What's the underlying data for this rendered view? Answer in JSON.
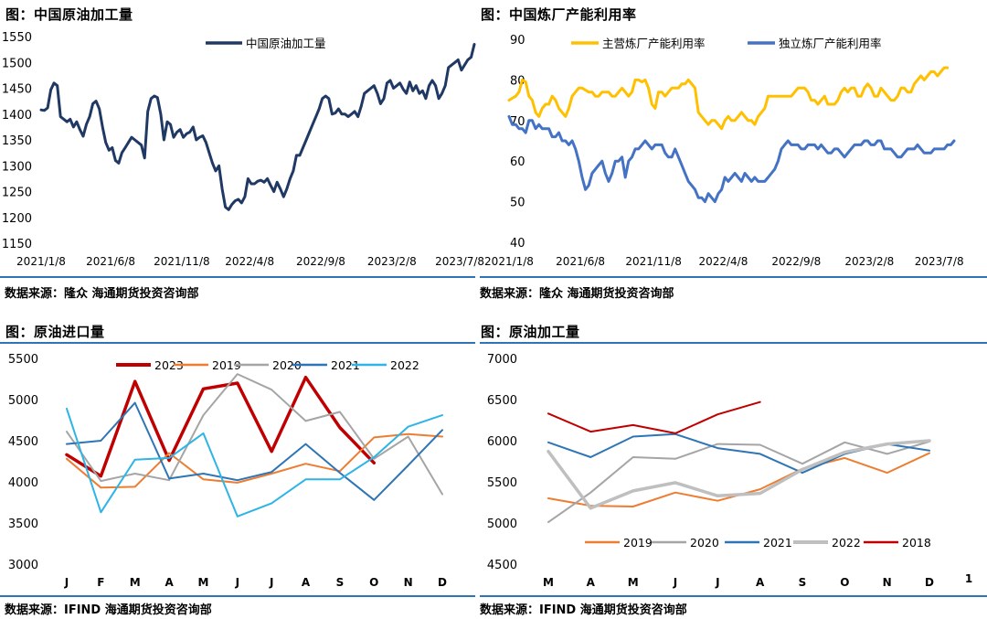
{
  "panels": {
    "p1": {
      "title": "图：中国原油加工量",
      "source": "数据来源：隆众   海通期货投资咨询部"
    },
    "p2": {
      "title": "图：中国炼厂产能利用率",
      "source": "数据来源：隆众   海通期货投资咨询部"
    },
    "p3": {
      "title": "图：原油进口量",
      "source": "数据来源：IFIND   海通期货投资咨询部"
    },
    "p4": {
      "title": "图：原油加工量",
      "source": "数据来源：IFIND   海通期货投资咨询部"
    }
  },
  "colors": {
    "rule": "#2E75B6",
    "navy": "#1F3864",
    "gold": "#FFC000",
    "blue2": "#4472C4",
    "c2023": "#C00000",
    "c2019": "#ED7D31",
    "c2020": "#A5A5A5",
    "c2021": "#2E75B6",
    "c2022": "#2EB4E6",
    "c2022b": "#BFBFBF",
    "c2018": "#C00000"
  },
  "chart_data": [
    {
      "id": "p1",
      "type": "line",
      "title": "图：中国原油加工量",
      "ylim": [
        1150,
        1550
      ],
      "yticks": [
        1150,
        1200,
        1250,
        1300,
        1350,
        1400,
        1450,
        1500,
        1550
      ],
      "xlim": [
        0,
        134
      ],
      "xticks": [
        {
          "label": "2021/1/8",
          "x": 0
        },
        {
          "label": "2021/6/8",
          "x": 21.5
        },
        {
          "label": "2021/11/8",
          "x": 43.5
        },
        {
          "label": "2022/4/8",
          "x": 64.5
        },
        {
          "label": "2022/9/8",
          "x": 86.5
        },
        {
          "label": "2023/2/8",
          "x": 108.5
        },
        {
          "label": "2023/7/8",
          "x": 129.5
        }
      ],
      "legend": "top-center",
      "series": [
        {
          "name": "中国原油加工量",
          "color": "#1F3864",
          "values": [
            1408,
            1407,
            1412,
            1447,
            1460,
            1455,
            1395,
            1390,
            1385,
            1390,
            1375,
            1385,
            1370,
            1357,
            1380,
            1395,
            1420,
            1425,
            1410,
            1375,
            1345,
            1330,
            1335,
            1310,
            1305,
            1325,
            1335,
            1345,
            1355,
            1350,
            1345,
            1340,
            1315,
            1405,
            1430,
            1435,
            1432,
            1400,
            1350,
            1385,
            1380,
            1355,
            1365,
            1370,
            1355,
            1362,
            1365,
            1375,
            1350,
            1355,
            1358,
            1345,
            1325,
            1305,
            1290,
            1300,
            1255,
            1220,
            1215,
            1225,
            1232,
            1235,
            1228,
            1240,
            1275,
            1265,
            1265,
            1270,
            1272,
            1268,
            1275,
            1262,
            1250,
            1268,
            1255,
            1240,
            1255,
            1275,
            1290,
            1320,
            1320,
            1335,
            1350,
            1365,
            1380,
            1395,
            1410,
            1430,
            1435,
            1430,
            1400,
            1402,
            1410,
            1400,
            1400,
            1395,
            1400,
            1405,
            1395,
            1415,
            1440,
            1445,
            1450,
            1455,
            1440,
            1420,
            1430,
            1460,
            1465,
            1450,
            1455,
            1460,
            1448,
            1440,
            1462,
            1445,
            1455,
            1440,
            1445,
            1430,
            1455,
            1465,
            1455,
            1430,
            1440,
            1455,
            1490,
            1495,
            1500,
            1505,
            1485,
            1495,
            1505,
            1510,
            1535
          ]
        }
      ]
    },
    {
      "id": "p2",
      "type": "line",
      "title": "图：中国炼厂产能利用率",
      "ylim": [
        40,
        90
      ],
      "yticks": [
        40,
        50,
        60,
        70,
        80,
        90
      ],
      "xlim": [
        0,
        134
      ],
      "xticks": [
        {
          "label": "2021/1/8",
          "x": 0
        },
        {
          "label": "2021/6/8",
          "x": 21.5
        },
        {
          "label": "2021/11/8",
          "x": 43.5
        },
        {
          "label": "2022/4/8",
          "x": 64.5
        },
        {
          "label": "2022/9/8",
          "x": 86.5
        },
        {
          "label": "2023/2/8",
          "x": 108.5
        },
        {
          "label": "2023/7/8",
          "x": 129.5
        }
      ],
      "legend": "top",
      "series": [
        {
          "name": "主营炼厂产能利用率",
          "color": "#FFC000",
          "values": [
            75,
            75.5,
            76,
            77,
            80,
            79.5,
            76,
            75,
            72,
            71,
            73,
            74,
            74,
            76,
            75,
            73,
            72,
            71,
            73,
            76,
            77,
            78,
            78,
            77.5,
            77,
            77,
            76,
            76,
            77,
            77,
            77,
            76,
            76,
            77,
            78,
            77,
            76,
            77,
            80,
            80,
            79.5,
            80,
            78,
            74,
            73,
            77,
            77,
            76,
            77,
            78,
            78,
            78,
            79,
            79,
            80,
            79,
            78,
            72,
            71,
            70,
            69,
            70,
            70,
            69,
            68,
            70,
            71,
            70,
            70,
            71,
            72,
            71,
            70,
            70,
            69,
            71,
            72,
            73,
            76,
            76,
            76,
            76,
            76,
            76,
            76,
            76,
            77,
            78,
            78,
            78,
            77,
            75,
            75,
            74,
            75,
            76,
            74,
            74,
            74,
            75,
            77,
            78,
            77,
            78,
            78,
            76,
            76,
            78,
            79,
            78,
            76,
            76,
            78,
            77,
            76,
            75,
            75,
            76,
            78,
            78,
            77,
            77,
            79,
            80,
            81,
            80,
            81,
            82,
            82,
            81,
            82,
            83,
            83
          ]
        },
        {
          "name": "独立炼厂产能利用率",
          "color": "#4472C4",
          "values": [
            71,
            69,
            69,
            68,
            68,
            67,
            70,
            70,
            68,
            69,
            68,
            68,
            68,
            66,
            66,
            67,
            65,
            65,
            64,
            65,
            63,
            60,
            56,
            53,
            54,
            57,
            58,
            59,
            60,
            57,
            55,
            57,
            60,
            60,
            61,
            56,
            60,
            61,
            63,
            63,
            64,
            65,
            64,
            63,
            64,
            64,
            64,
            62,
            61,
            61,
            63,
            61,
            59,
            57,
            55,
            54,
            53,
            51,
            51,
            50,
            52,
            51,
            50,
            52,
            53,
            56,
            55,
            56,
            57,
            56,
            55,
            57,
            56,
            55,
            56,
            55,
            55,
            55,
            56,
            57,
            58,
            60,
            63,
            64,
            65,
            64,
            64,
            64,
            63,
            63,
            64,
            64,
            64,
            63,
            64,
            63,
            62,
            62,
            63,
            63,
            62,
            61,
            62,
            63,
            64,
            64,
            64,
            65,
            65,
            64,
            64,
            65,
            65,
            63,
            63,
            63,
            62,
            61,
            61,
            62,
            63,
            63,
            63,
            64,
            63,
            62,
            62,
            62,
            63,
            63,
            63,
            63,
            64,
            64,
            65
          ]
        }
      ]
    },
    {
      "id": "p3",
      "type": "line",
      "title": "图：原油进口量",
      "categories": [
        "J",
        "F",
        "M",
        "A",
        "M",
        "J",
        "J",
        "A",
        "S",
        "O",
        "N",
        "D"
      ],
      "ylim": [
        3000,
        5500
      ],
      "yticks": [
        3000,
        3500,
        4000,
        4500,
        5000,
        5500
      ],
      "legend": "top",
      "series": [
        {
          "name": "2023",
          "color": "#C00000",
          "values": [
            4330,
            4070,
            5220,
            4260,
            5130,
            5200,
            4370,
            5270,
            4660,
            4230,
            null,
            null
          ]
        },
        {
          "name": "2019",
          "color": "#ED7D31",
          "values": [
            4280,
            3930,
            3940,
            4350,
            4030,
            3990,
            4100,
            4220,
            4130,
            4540,
            4580,
            4550
          ]
        },
        {
          "name": "2020",
          "color": "#A5A5A5",
          "values": [
            4610,
            4010,
            4100,
            4020,
            4810,
            5310,
            5120,
            4740,
            4850,
            4280,
            4550,
            3850
          ]
        },
        {
          "name": "2021",
          "color": "#2E75B6",
          "values": [
            4460,
            4500,
            4960,
            4040,
            4100,
            4020,
            4120,
            4460,
            4110,
            3780,
            4200,
            4630
          ]
        },
        {
          "name": "2022",
          "color": "#2EB4E6",
          "values": [
            4890,
            3630,
            4270,
            4290,
            4590,
            3580,
            3740,
            4030,
            4030,
            4300,
            4670,
            4810
          ]
        }
      ]
    },
    {
      "id": "p4",
      "type": "line",
      "title": "图：原油加工量",
      "categories": [
        "M",
        "A",
        "M",
        "J",
        "J",
        "A",
        "S",
        "O",
        "N",
        "D"
      ],
      "ylim": [
        4500,
        7000
      ],
      "yticks": [
        4500,
        5000,
        5500,
        6000,
        6500,
        7000
      ],
      "legend": "bottom",
      "series": [
        {
          "name": "2019",
          "color": "#ED7D31",
          "values": [
            5300,
            5210,
            5200,
            5370,
            5270,
            5410,
            5660,
            5790,
            5610,
            5850
          ]
        },
        {
          "name": "2020",
          "color": "#A5A5A5",
          "values": [
            5010,
            5370,
            5800,
            5780,
            5960,
            5950,
            5720,
            5980,
            5840,
            5990
          ]
        },
        {
          "name": "2021",
          "color": "#2E75B6",
          "values": [
            5980,
            5800,
            6050,
            6080,
            5910,
            5840,
            5610,
            5840,
            5960,
            5880
          ]
        },
        {
          "name": "2022",
          "color": "#BFBFBF",
          "values": [
            5870,
            5180,
            5390,
            5490,
            5330,
            5360,
            5650,
            5860,
            5960,
            6000
          ]
        },
        {
          "name": "2018",
          "color": "#C00000",
          "values": [
            6330,
            6110,
            6190,
            6090,
            6320,
            6470,
            null,
            null,
            null,
            null
          ]
        }
      ],
      "annotations": [
        "1"
      ]
    }
  ]
}
